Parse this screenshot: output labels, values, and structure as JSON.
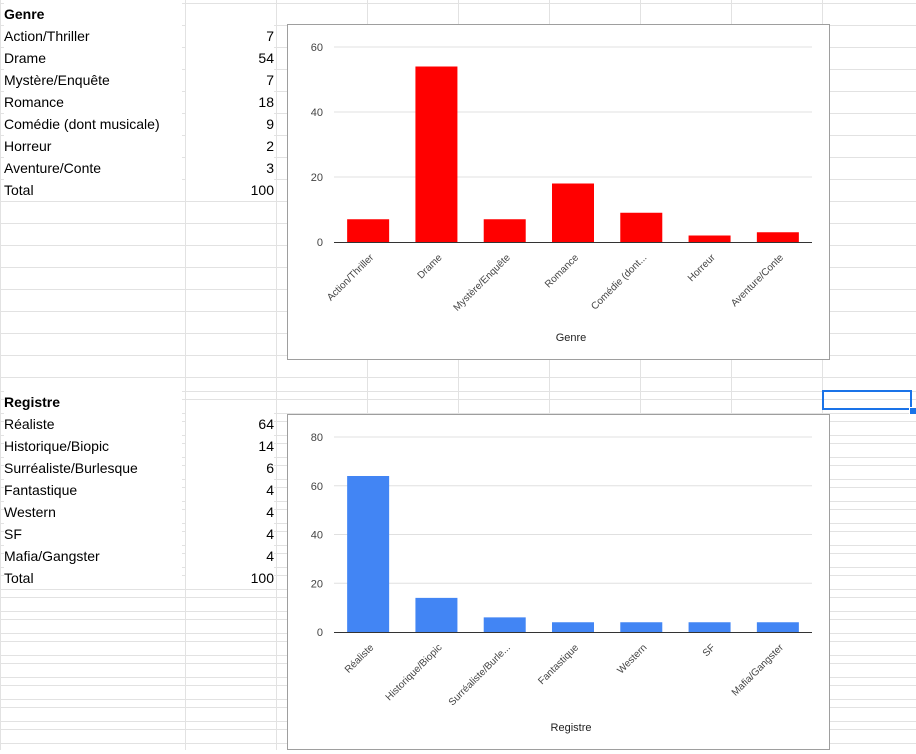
{
  "colors": {
    "genre_bar": "#ff0000",
    "registre_bar": "#4285f4",
    "selection": "#1a73e8"
  },
  "genre_table": {
    "header": "Genre",
    "rows": [
      {
        "label": "Action/Thriller",
        "value": "7"
      },
      {
        "label": "Drame",
        "value": "54"
      },
      {
        "label": "Mystère/Enquête",
        "value": "7"
      },
      {
        "label": "Romance",
        "value": "18"
      },
      {
        "label": "Comédie (dont musicale)",
        "value": "9"
      },
      {
        "label": "Horreur",
        "value": "2"
      },
      {
        "label": "Aventure/Conte",
        "value": "3"
      }
    ],
    "total_label": "Total",
    "total_value": "100"
  },
  "registre_table": {
    "header": "Registre",
    "rows": [
      {
        "label": "Réaliste",
        "value": "64"
      },
      {
        "label": "Historique/Biopic",
        "value": "14"
      },
      {
        "label": "Surréaliste/Burlesque",
        "value": "6"
      },
      {
        "label": "Fantastique",
        "value": "4"
      },
      {
        "label": "Western",
        "value": "4"
      },
      {
        "label": "SF",
        "value": "4"
      },
      {
        "label": "Mafia/Gangster",
        "value": "4"
      }
    ],
    "total_label": "Total",
    "total_value": "100"
  },
  "chart_data": [
    {
      "type": "bar",
      "categories": [
        "Action/Thriller",
        "Drame",
        "Mystère/Enquête",
        "Romance",
        "Comédie (dont...",
        "Horreur",
        "Aventure/Conte"
      ],
      "values": [
        7,
        54,
        7,
        18,
        9,
        2,
        3
      ],
      "xlabel": "Genre",
      "ylabel": "",
      "ylim": [
        0,
        60
      ],
      "yticks": [
        0,
        20,
        40,
        60
      ],
      "grid": true,
      "legend": "none",
      "color": "#ff0000"
    },
    {
      "type": "bar",
      "categories": [
        "Réaliste",
        "Historique/Biopic",
        "Surréaliste/Burle...",
        "Fantastique",
        "Western",
        "SF",
        "Mafia/Gangster"
      ],
      "values": [
        64,
        14,
        6,
        4,
        4,
        4,
        4
      ],
      "xlabel": "Registre",
      "ylabel": "",
      "ylim": [
        0,
        80
      ],
      "yticks": [
        0,
        20,
        40,
        60,
        80
      ],
      "grid": true,
      "legend": "none",
      "color": "#4285f4"
    }
  ]
}
